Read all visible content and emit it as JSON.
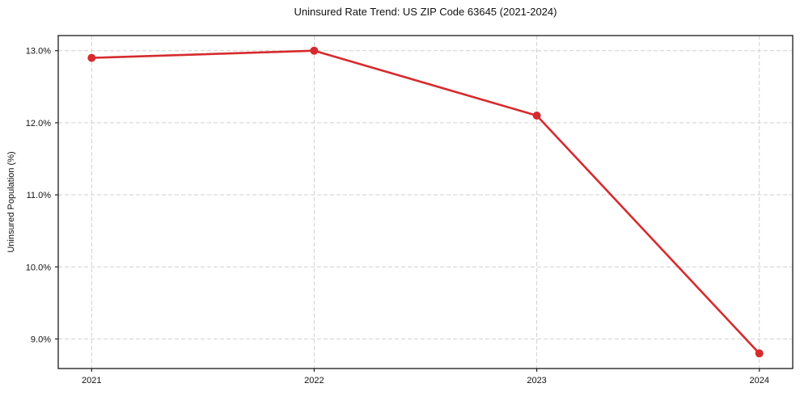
{
  "chart": {
    "title": "Uninsured Rate Trend: US ZIP Code 63645 (2021-2024)",
    "ylabel": "Uninsured Population (%)"
  },
  "chart_data": {
    "type": "line",
    "title": "Uninsured Rate Trend: US ZIP Code 63645 (2021-2024)",
    "xlabel": "",
    "ylabel": "Uninsured Population (%)",
    "x": [
      2021,
      2022,
      2023,
      2024
    ],
    "series": [
      {
        "name": "Uninsured Rate",
        "values": [
          12.9,
          13.0,
          12.1,
          8.8
        ]
      }
    ],
    "xticks": [
      2021,
      2022,
      2023,
      2024
    ],
    "xtick_labels": [
      "2021",
      "2022",
      "2023",
      "2024"
    ],
    "yticks": [
      9.0,
      10.0,
      11.0,
      12.0,
      13.0
    ],
    "ytick_labels": [
      "9.0%",
      "10.0%",
      "11.0%",
      "12.0%",
      "13.0%"
    ],
    "xlim": [
      2020.85,
      2024.15
    ],
    "ylim": [
      8.59,
      13.21
    ],
    "grid": true,
    "grid_style": "dashed",
    "legend": false,
    "line_color": "#d62b2e",
    "marker": "circle",
    "marker_radius": 5,
    "grid_color": "#d0d0d0",
    "spine_color": "#1a1a1a",
    "background_color": "#ffffff"
  }
}
